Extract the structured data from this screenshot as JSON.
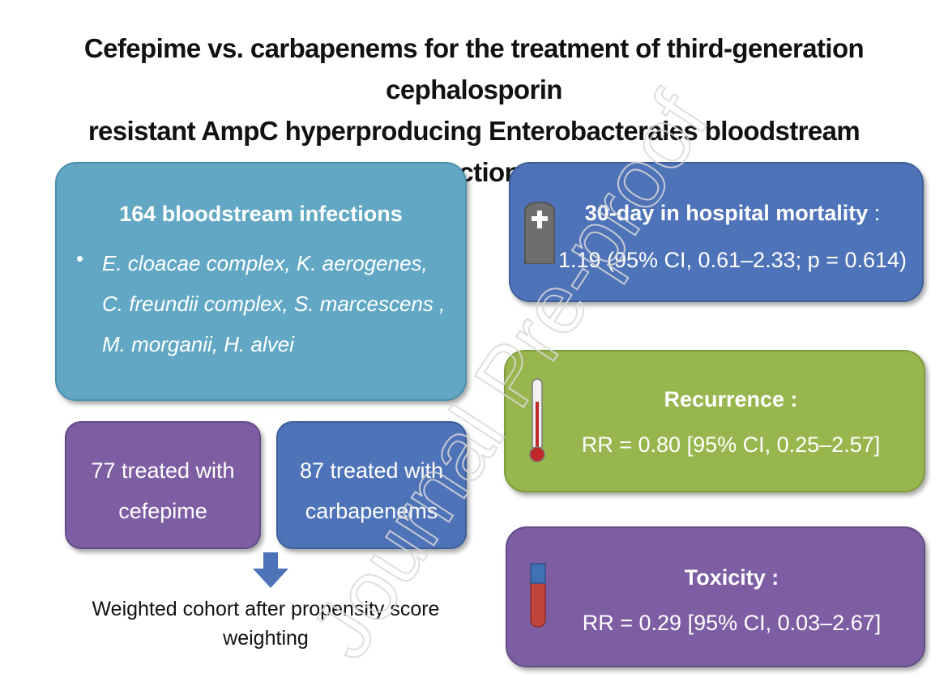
{
  "title": {
    "line1": "Cefepime vs. carbapenems for the treatment of third-generation cephalosporin",
    "line2": "resistant AmpC hyperproducing Enterobacterales bloodstream infections"
  },
  "cohort": {
    "heading": "164 bloodstream infections",
    "bullet": "•",
    "species_lines": [
      "E. cloacae complex, K. aerogenes,",
      "C. freundii complex, S. marcescens ,",
      "M. morganii, H. alvei"
    ]
  },
  "arms": {
    "cefepime": [
      "77 treated with",
      "cefepime"
    ],
    "carbapenems": [
      "87 treated with",
      "carbapenems"
    ]
  },
  "weighting": [
    "Weighted cohort after propensity score",
    "weighting"
  ],
  "outcomes": {
    "mortality": {
      "label": "30-day in hospital mortality",
      "suffix": " :",
      "value": "1.19 (95% CI, 0.61–2.33; p = 0.614)",
      "icon": "tombstone-icon"
    },
    "recurrence": {
      "label": "Recurrence :",
      "value": "RR = 0.80 [95% CI, 0.25–2.57]",
      "icon": "thermometer-icon"
    },
    "toxicity": {
      "label": "Toxicity :",
      "value": "RR = 0.29 [95% CI, 0.03–2.67]",
      "icon": "blood-tube-icon"
    }
  },
  "watermark": "Journal Pre-proof",
  "colors": {
    "teal": "#62a8c4",
    "blue": "#4e73b8",
    "green": "#97b74e",
    "purple": "#7d5ea3"
  }
}
